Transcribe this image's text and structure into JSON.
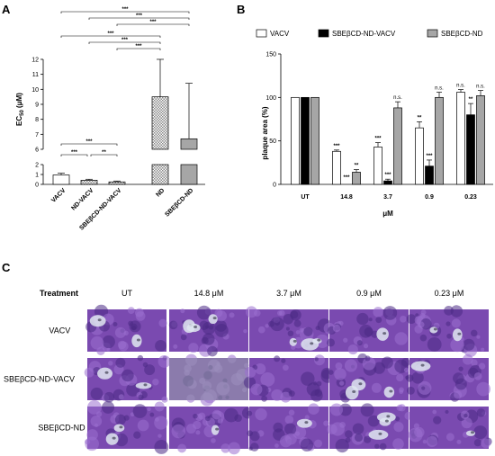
{
  "panels": {
    "a": "A",
    "b": "B",
    "c": "C"
  },
  "chart_data": [
    {
      "type": "bar",
      "panel": "A",
      "categories": [
        "VACV",
        "ND-VACV",
        "SBEβCD-ND-VACV",
        "ND",
        "SBEβCD-ND"
      ],
      "values": [
        0.95,
        0.42,
        0.25,
        9.5,
        6.7
      ],
      "errors": [
        0.18,
        0.1,
        0.09,
        2.5,
        3.7
      ],
      "patterns": [
        "white",
        "checker",
        "checker",
        "checker",
        "gray"
      ],
      "ylabel_main": "EC",
      "ylabel_sub": "50",
      "ylabel_unit": " (μM)",
      "ylim": [
        0,
        12
      ],
      "axis_break": [
        2,
        6
      ],
      "yticks": [
        "0",
        "1",
        "2",
        "6",
        "7",
        "8",
        "9",
        "10",
        "11",
        "12"
      ],
      "significance": [
        {
          "from": 0,
          "to": 4,
          "label": "***"
        },
        {
          "from": 1,
          "to": 4,
          "label": "***"
        },
        {
          "from": 2,
          "to": 4,
          "label": "***"
        },
        {
          "from": 0,
          "to": 3,
          "label": "***"
        },
        {
          "from": 1,
          "to": 3,
          "label": "***"
        },
        {
          "from": 2,
          "to": 3,
          "label": "***"
        },
        {
          "from": 0,
          "to": 2,
          "label": "***"
        },
        {
          "from": 0,
          "to": 1,
          "label": "***"
        },
        {
          "from": 1,
          "to": 2,
          "label": "**"
        }
      ]
    },
    {
      "type": "bar",
      "panel": "B",
      "categories": [
        "UT",
        "14.8",
        "3.7",
        "0.9",
        "0.23"
      ],
      "series": [
        {
          "name": "VACV",
          "color": "#ffffff",
          "values": [
            100,
            38,
            43,
            65,
            106
          ],
          "errors": [
            0,
            1.5,
            5,
            7,
            3
          ],
          "sig": [
            "",
            "***",
            "***",
            "**",
            "n.s."
          ]
        },
        {
          "name": "SBEβCD-ND-VACV",
          "color": "#000000",
          "values": [
            100,
            0,
            4,
            21,
            80
          ],
          "errors": [
            0,
            0,
            2,
            7,
            13
          ],
          "sig": [
            "",
            "***",
            "***",
            "***",
            "**"
          ]
        },
        {
          "name": "SBEβCD-ND",
          "color": "#a6a6a6",
          "values": [
            100,
            14,
            88,
            100,
            102
          ],
          "errors": [
            0,
            3,
            7,
            6,
            6
          ],
          "sig": [
            "",
            "**",
            "n.s.",
            "n.s.",
            "n.s."
          ]
        }
      ],
      "xlabel": "μM",
      "ylabel": "plaque area (%)",
      "ylim": [
        0,
        150
      ],
      "yticks": [
        "0",
        "50",
        "100",
        "150"
      ],
      "legend_position": "top"
    }
  ],
  "panel_c": {
    "header_label": "Treatment",
    "columns": [
      "UT",
      "14.8 μM",
      "3.7 μM",
      "0.9 μM",
      "0.23 μM"
    ],
    "rows": [
      "VACV",
      "SBEβCD-ND-VACV",
      "SBEβCD-ND"
    ],
    "colors": {
      "cell_base": "#7a4ab0",
      "cell_dark": "#4a2a85",
      "plaque": "#dfe6f0"
    }
  }
}
